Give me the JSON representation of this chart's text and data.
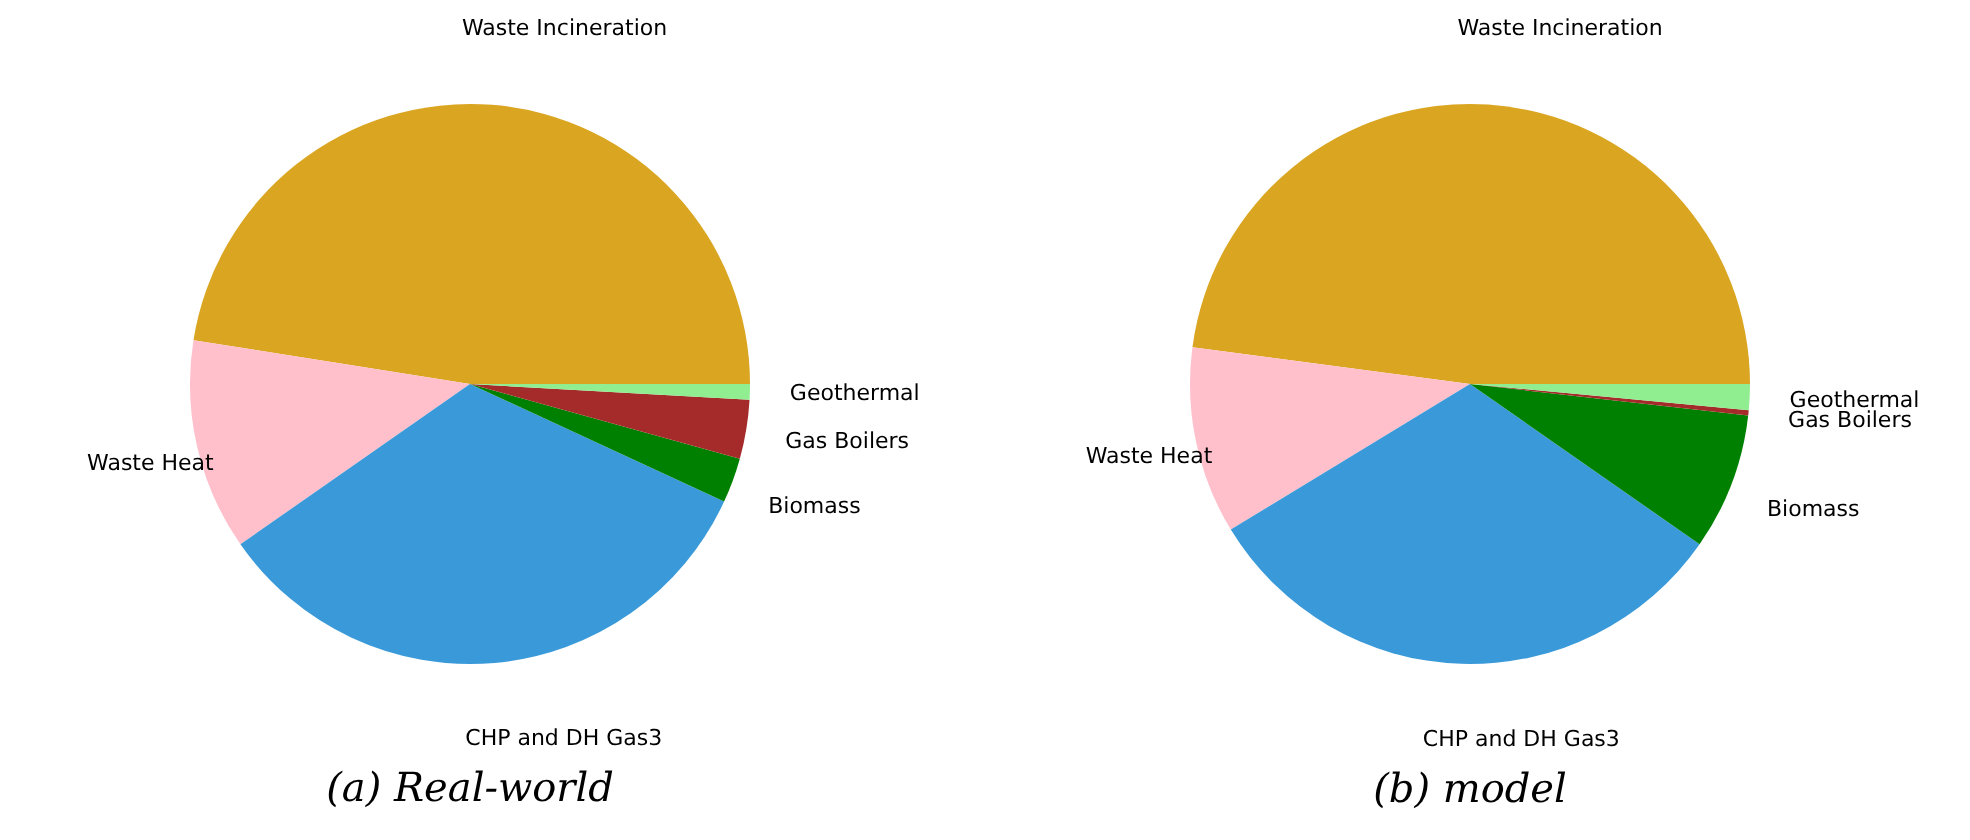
{
  "chart_data": [
    {
      "type": "pie",
      "title": "(a) Real-world",
      "categories": [
        "Waste Incineration",
        "Waste Heat",
        "CHP and DH Gas3",
        "Biomass",
        "Gas Boilers",
        "Geothermal"
      ],
      "values": [
        47.5,
        12.2,
        33.4,
        2.6,
        3.4,
        0.9
      ],
      "colors": [
        "#daa520",
        "#ffc0cb",
        "#3a9ad9",
        "#008000",
        "#a52a2a",
        "#90ee90"
      ]
    },
    {
      "type": "pie",
      "title": "(b) model",
      "categories": [
        "Waste Incineration",
        "Waste Heat",
        "CHP and DH Gas3",
        "Biomass",
        "Gas Boilers",
        "Geothermal"
      ],
      "values": [
        47.9,
        10.8,
        31.6,
        7.9,
        0.3,
        1.5
      ],
      "colors": [
        "#daa520",
        "#ffc0cb",
        "#3a9ad9",
        "#008000",
        "#a52a2a",
        "#90ee90"
      ]
    }
  ]
}
